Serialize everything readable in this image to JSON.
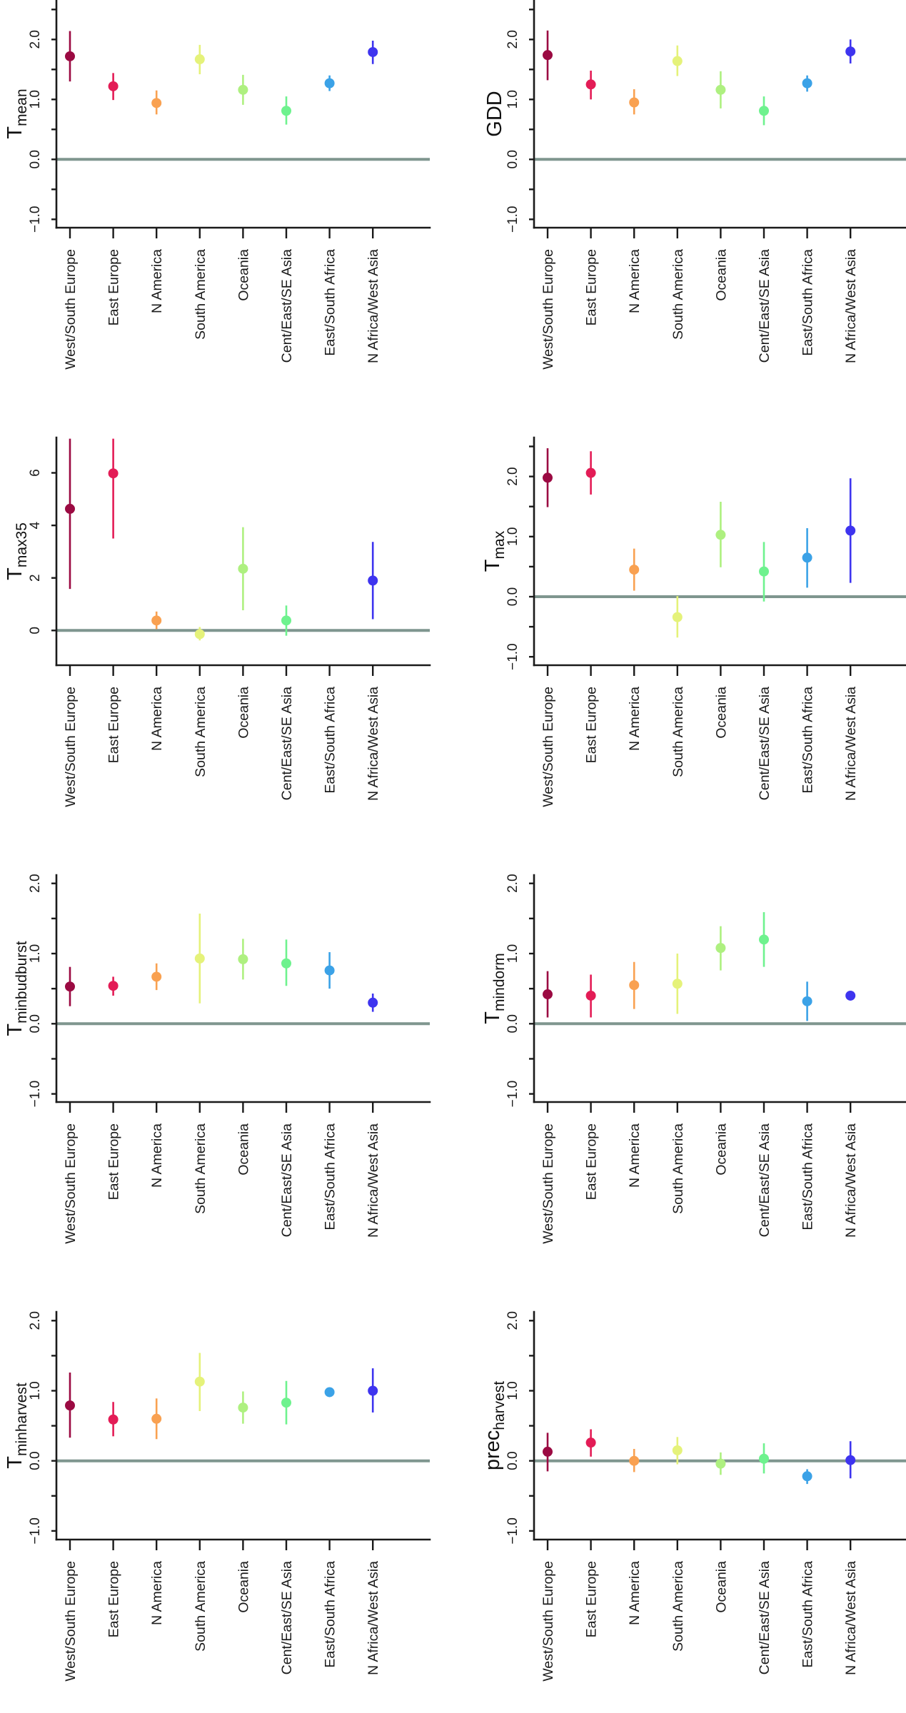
{
  "figure": {
    "categories": [
      "West/South Europe",
      "East Europe",
      "N America",
      "South America",
      "Oceania",
      "Cent/East/SE Asia",
      "East/South Africa",
      "N Africa/West Asia"
    ],
    "category_colors": [
      "#9b0a42",
      "#e31c56",
      "#f9a151",
      "#e5f27a",
      "#aef080",
      "#6ef28e",
      "#3ba2e7",
      "#3e34ef"
    ],
    "zero_line_color": "#7f968f"
  },
  "chart_data": [
    {
      "id": "tmean",
      "type": "scatter",
      "title": "",
      "ylabel": {
        "main": "T",
        "sub": "mean"
      },
      "xlabel": "",
      "ylim": [
        -1.1,
        2.65
      ],
      "yticks": [
        -1.0,
        -0.5,
        0.0,
        0.5,
        1.0,
        1.5,
        2.0,
        2.5
      ],
      "ytick_labels": [
        "-1.0",
        "",
        "0.0",
        "",
        "1.0",
        "",
        "2.0",
        ""
      ],
      "grid": false,
      "reference_line": 0,
      "categories": [
        "West/South Europe",
        "East Europe",
        "N America",
        "South America",
        "Oceania",
        "Cent/East/SE Asia",
        "East/South Africa",
        "N Africa/West Asia"
      ],
      "values": [
        1.72,
        1.22,
        0.94,
        1.67,
        1.16,
        0.81,
        1.27,
        1.79
      ],
      "lower": [
        1.3,
        0.99,
        0.75,
        1.42,
        0.91,
        0.58,
        1.14,
        1.59
      ],
      "upper": [
        2.14,
        1.44,
        1.15,
        1.91,
        1.41,
        1.05,
        1.4,
        1.98
      ]
    },
    {
      "id": "gdd",
      "type": "scatter",
      "title": "",
      "ylabel": {
        "main": "GDD",
        "sub": ""
      },
      "xlabel": "",
      "ylim": [
        -1.1,
        2.65
      ],
      "yticks": [
        -1.0,
        -0.5,
        0.0,
        0.5,
        1.0,
        1.5,
        2.0,
        2.5
      ],
      "ytick_labels": [
        "-1.0",
        "",
        "0.0",
        "",
        "1.0",
        "",
        "2.0",
        ""
      ],
      "grid": false,
      "reference_line": 0,
      "categories": [
        "West/South Europe",
        "East Europe",
        "N America",
        "South America",
        "Oceania",
        "Cent/East/SE Asia",
        "East/South Africa",
        "N Africa/West Asia"
      ],
      "values": [
        1.74,
        1.25,
        0.95,
        1.64,
        1.16,
        0.81,
        1.27,
        1.8
      ],
      "lower": [
        1.32,
        1.0,
        0.75,
        1.39,
        0.85,
        0.57,
        1.13,
        1.6
      ],
      "upper": [
        2.15,
        1.48,
        1.17,
        1.9,
        1.47,
        1.05,
        1.4,
        2.0
      ]
    },
    {
      "id": "tmax35",
      "type": "scatter",
      "title": "",
      "ylabel": {
        "main": "T",
        "sub": "max35"
      },
      "xlabel": "",
      "ylim": [
        -1.3,
        7.3
      ],
      "yticks": [
        0,
        2,
        4,
        6
      ],
      "ytick_labels": [
        "0",
        "2",
        "4",
        "6"
      ],
      "grid": false,
      "reference_line": 0,
      "categories": [
        "West/South Europe",
        "East Europe",
        "N America",
        "South America",
        "Oceania",
        "Cent/East/SE Asia",
        "East/South Africa",
        "N Africa/West Asia"
      ],
      "values": [
        4.63,
        5.98,
        0.38,
        -0.14,
        2.35,
        0.38,
        null,
        1.9
      ],
      "lower": [
        1.58,
        3.5,
        0.05,
        -0.38,
        0.77,
        -0.2,
        null,
        0.43
      ],
      "upper": [
        7.3,
        7.3,
        0.72,
        0.13,
        3.93,
        0.95,
        null,
        3.37
      ]
    },
    {
      "id": "tmax",
      "type": "scatter",
      "title": "",
      "ylabel": {
        "main": "T",
        "sub": "max"
      },
      "xlabel": "",
      "ylim": [
        -1.14,
        2.65
      ],
      "yticks": [
        -1.0,
        -0.5,
        0.0,
        0.5,
        1.0,
        1.5,
        2.0,
        2.5
      ],
      "ytick_labels": [
        "-1.0",
        "",
        "0.0",
        "",
        "1.0",
        "",
        "2.0",
        ""
      ],
      "grid": false,
      "reference_line": 0,
      "categories": [
        "West/South Europe",
        "East Europe",
        "N America",
        "South America",
        "Oceania",
        "Cent/East/SE Asia",
        "East/South Africa",
        "N Africa/West Asia"
      ],
      "values": [
        1.98,
        2.06,
        0.45,
        -0.34,
        1.03,
        0.42,
        0.65,
        1.1
      ],
      "lower": [
        1.49,
        1.7,
        0.1,
        -0.68,
        0.49,
        -0.08,
        0.15,
        0.23
      ],
      "upper": [
        2.47,
        2.42,
        0.8,
        0.01,
        1.58,
        0.91,
        1.14,
        1.97
      ]
    },
    {
      "id": "tminbudburst",
      "type": "scatter",
      "title": "",
      "ylabel": {
        "main": "T",
        "sub": "minbudburst"
      },
      "xlabel": "",
      "ylim": [
        -1.12,
        2.12
      ],
      "yticks": [
        -1.0,
        -0.5,
        0.0,
        0.5,
        1.0,
        1.5,
        2.0
      ],
      "ytick_labels": [
        "-1.0",
        "",
        "0.0",
        "",
        "1.0",
        "",
        "2.0"
      ],
      "grid": false,
      "reference_line": 0,
      "categories": [
        "West/South Europe",
        "East Europe",
        "N America",
        "South America",
        "Oceania",
        "Cent/East/SE Asia",
        "East/South Africa",
        "N Africa/West Asia"
      ],
      "values": [
        0.53,
        0.54,
        0.67,
        0.93,
        0.92,
        0.86,
        0.76,
        0.3
      ],
      "lower": [
        0.25,
        0.4,
        0.48,
        0.29,
        0.63,
        0.54,
        0.5,
        0.17
      ],
      "upper": [
        0.81,
        0.67,
        0.86,
        1.57,
        1.21,
        1.2,
        1.02,
        0.43
      ]
    },
    {
      "id": "tmindorm",
      "type": "scatter",
      "title": "",
      "ylabel": {
        "main": "T",
        "sub": "mindorm"
      },
      "xlabel": "",
      "ylim": [
        -1.12,
        2.12
      ],
      "yticks": [
        -1.0,
        -0.5,
        0.0,
        0.5,
        1.0,
        1.5,
        2.0
      ],
      "ytick_labels": [
        "-1.0",
        "",
        "0.0",
        "",
        "1.0",
        "",
        "2.0"
      ],
      "grid": false,
      "reference_line": 0,
      "categories": [
        "West/South Europe",
        "East Europe",
        "N America",
        "South America",
        "Oceania",
        "Cent/East/SE Asia",
        "East/South Africa",
        "N Africa/West Asia"
      ],
      "values": [
        0.42,
        0.4,
        0.55,
        0.57,
        1.08,
        1.2,
        0.32,
        0.4
      ],
      "lower": [
        0.09,
        0.09,
        0.21,
        0.14,
        0.76,
        0.81,
        0.04,
        0.38
      ],
      "upper": [
        0.75,
        0.7,
        0.88,
        1.0,
        1.39,
        1.59,
        0.6,
        0.42
      ]
    },
    {
      "id": "tminharvest",
      "type": "scatter",
      "title": "",
      "ylabel": {
        "main": "T",
        "sub": "minharvest"
      },
      "xlabel": "",
      "ylim": [
        -1.12,
        2.12
      ],
      "yticks": [
        -1.0,
        -0.5,
        0.0,
        0.5,
        1.0,
        1.5,
        2.0
      ],
      "ytick_labels": [
        "-1.0",
        "",
        "0.0",
        "",
        "1.0",
        "",
        "2.0"
      ],
      "grid": false,
      "reference_line": 0,
      "categories": [
        "West/South Europe",
        "East Europe",
        "N America",
        "South America",
        "Oceania",
        "Cent/East/SE Asia",
        "East/South Africa",
        "N Africa/West Asia"
      ],
      "values": [
        0.79,
        0.59,
        0.6,
        1.13,
        0.76,
        0.83,
        0.98,
        1.0
      ],
      "lower": [
        0.33,
        0.35,
        0.31,
        0.71,
        0.53,
        0.52,
        0.95,
        0.69
      ],
      "upper": [
        1.26,
        0.84,
        0.89,
        1.54,
        0.99,
        1.14,
        1.01,
        1.32
      ]
    },
    {
      "id": "precharvest",
      "type": "scatter",
      "title": "",
      "ylabel": {
        "main": "prec",
        "sub": "harvest"
      },
      "xlabel": "",
      "ylim": [
        -1.12,
        2.12
      ],
      "yticks": [
        -1.0,
        -0.5,
        0.0,
        0.5,
        1.0,
        1.5,
        2.0
      ],
      "ytick_labels": [
        "-1.0",
        "",
        "0.0",
        "",
        "1.0",
        "",
        "2.0"
      ],
      "grid": false,
      "reference_line": 0,
      "categories": [
        "West/South Europe",
        "East Europe",
        "N America",
        "South America",
        "Oceania",
        "Cent/East/SE Asia",
        "East/South Africa",
        "N Africa/West Asia"
      ],
      "values": [
        0.13,
        0.26,
        0.0,
        0.15,
        -0.04,
        0.03,
        -0.22,
        0.01
      ],
      "lower": [
        -0.15,
        0.06,
        -0.16,
        -0.05,
        -0.2,
        -0.18,
        -0.33,
        -0.25
      ],
      "upper": [
        0.4,
        0.45,
        0.17,
        0.34,
        0.12,
        0.25,
        -0.12,
        0.28
      ]
    }
  ]
}
